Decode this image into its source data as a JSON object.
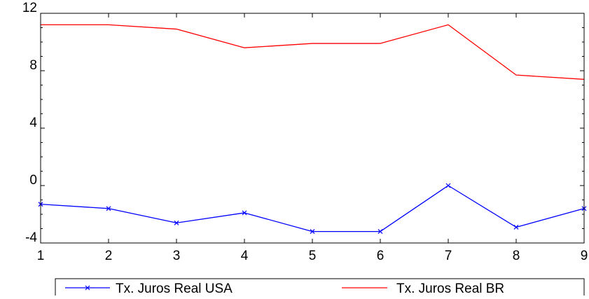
{
  "chart_data": {
    "type": "line",
    "title": "",
    "xlabel": "",
    "ylabel": "",
    "x": [
      1,
      2,
      3,
      4,
      5,
      6,
      7,
      8,
      9
    ],
    "x_tick_labels": [
      "1",
      "2",
      "3",
      "4",
      "5",
      "6",
      "7",
      "8",
      "9"
    ],
    "xlim": [
      1,
      9
    ],
    "ylim": [
      -4,
      12
    ],
    "y_ticks": [
      -4,
      0,
      4,
      8,
      12
    ],
    "y_tick_labels": [
      "-4",
      "0",
      "4",
      "8",
      "12"
    ],
    "grid": false,
    "legend_placement": "bottom",
    "series": [
      {
        "name": "Tx. Juros Real USA",
        "color": "#0000ff",
        "marker": "x",
        "values": [
          -1.3,
          -1.6,
          -2.6,
          -1.9,
          -3.2,
          -3.2,
          0.0,
          -2.9,
          -1.6
        ]
      },
      {
        "name": "Tx. Juros Real BR",
        "color": "#ff0000",
        "marker": "none",
        "values": [
          11.2,
          11.2,
          10.9,
          9.6,
          9.9,
          9.9,
          11.2,
          7.7,
          7.4
        ]
      }
    ]
  }
}
